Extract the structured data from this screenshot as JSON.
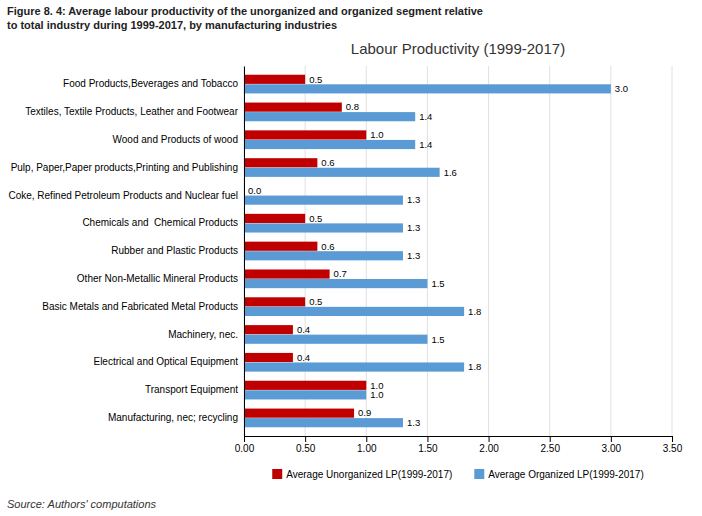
{
  "chart_data": {
    "type": "bar",
    "orientation": "horizontal",
    "title": "Labour Productivity (1999-2017)",
    "annotations": [
      "Figure 8. 4: Average labour productivity of the unorganized and organized segment relative",
      "to total industry during 1999-2017, by manufacturing industries",
      "Source: Authors' computations"
    ],
    "categories": [
      "Manufacturing, nec; recycling",
      "Transport Equipment",
      "Electrical and Optical Equipment",
      "Machinery, nec.",
      "Basic Metals and Fabricated Metal Products",
      "Other Non-Metallic Mineral Products",
      "Rubber and Plastic Products",
      "Chemicals and  Chemical Products",
      "Coke, Refined Petroleum Products and Nuclear fuel",
      "Pulp, Paper,Paper products,Printing and Publishing",
      "Wood and Products of wood",
      "Textiles, Textile Products, Leather and Footwear",
      "Food Products,Beverages and Tobacco"
    ],
    "series": [
      {
        "name": "Average Unorganized LP(1999-2017)",
        "color": "#c00000",
        "values": [
          0.9,
          1.0,
          0.4,
          0.4,
          0.5,
          0.7,
          0.6,
          0.5,
          0.0,
          0.6,
          1.0,
          0.8,
          0.5
        ],
        "value_labels": [
          "0.9",
          "1.0",
          "0.4",
          "0.4",
          "0.5",
          "0.7",
          "0.6",
          "0.5",
          "0.0",
          "0.6",
          "1.0",
          "0.8",
          "0.5"
        ]
      },
      {
        "name": "Average Organized LP(1999-2017)",
        "color": "#5b9bd5",
        "values": [
          1.3,
          1.0,
          1.8,
          1.5,
          1.8,
          1.5,
          1.3,
          1.3,
          1.3,
          1.6,
          1.4,
          1.4,
          3.0
        ],
        "value_labels": [
          "1.3",
          "1.0",
          "1.8",
          "1.5",
          "1.8",
          "1.5",
          "1.3",
          "1.3",
          "1.3",
          "1.6",
          "1.4",
          "1.4",
          "3.0"
        ]
      }
    ],
    "xlim": [
      0,
      3.5
    ],
    "xticks": [
      {
        "value": 0.0,
        "label": "0.00"
      },
      {
        "value": 0.5,
        "label": "0.50"
      },
      {
        "value": 1.0,
        "label": "1.00"
      },
      {
        "value": 1.5,
        "label": "1.50"
      },
      {
        "value": 2.0,
        "label": "2.00"
      },
      {
        "value": 2.5,
        "label": "2.50"
      },
      {
        "value": 3.0,
        "label": "3.00"
      },
      {
        "value": 3.5,
        "label": "3.50"
      }
    ],
    "grid": true,
    "legend": "bottom",
    "data_labels": true
  }
}
